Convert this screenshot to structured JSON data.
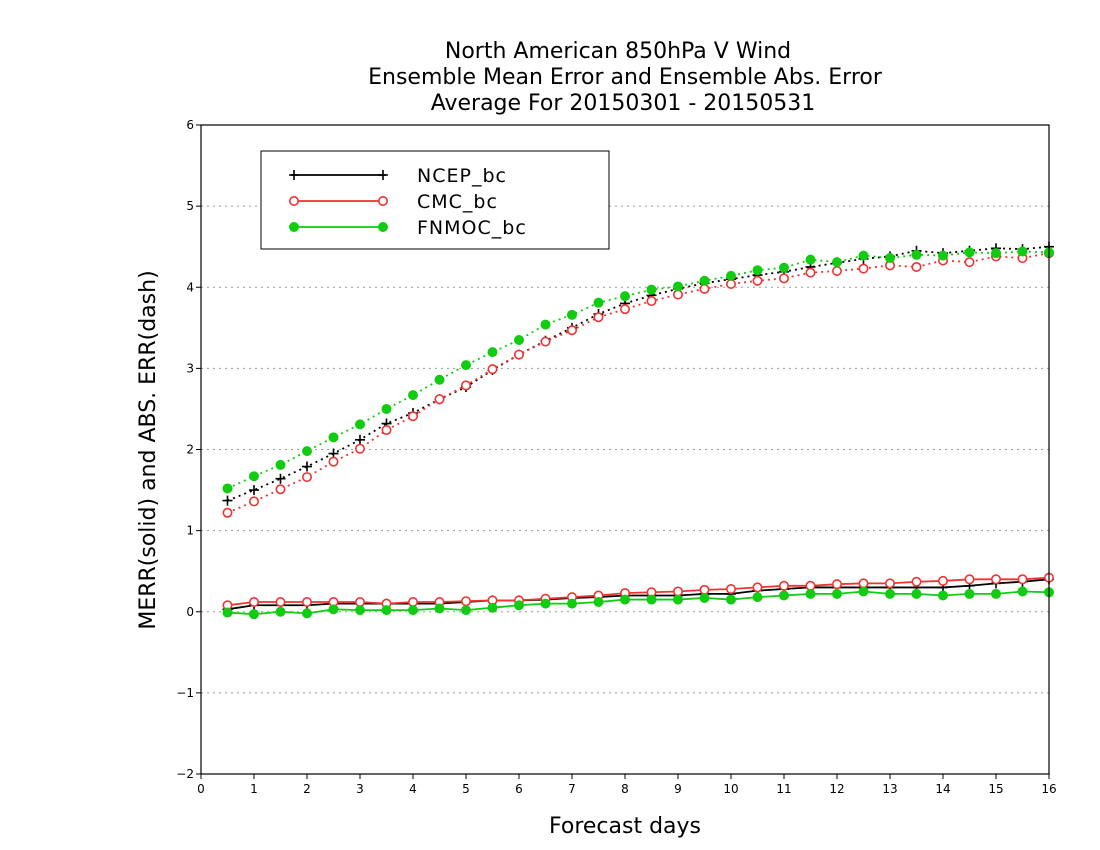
{
  "chart_data": {
    "type": "line",
    "title": [
      "North American 850hPa V Wind",
      "Ensemble Mean Error and Ensemble Abs. Error",
      "Average For 20150301 - 20150531"
    ],
    "xlabel": "Forecast days",
    "ylabel": "MERR(solid) and ABS. ERR(dash)",
    "xlim": [
      0,
      16
    ],
    "ylim": [
      -2,
      6
    ],
    "x_ticks": [
      "0",
      "1",
      "2",
      "3",
      "4",
      "5",
      "6",
      "7",
      "8",
      "9",
      "10",
      "11",
      "12",
      "13",
      "14",
      "15",
      "16"
    ],
    "y_ticks": [
      "−2",
      "−1",
      "0",
      "1",
      "2",
      "3",
      "4",
      "5",
      "6"
    ],
    "grid": "horizontal dotted",
    "legend_position": "top-left",
    "x": [
      0.5,
      1,
      1.5,
      2,
      2.5,
      3,
      3.5,
      4,
      4.5,
      5,
      5.5,
      6,
      6.5,
      7,
      7.5,
      8,
      8.5,
      9,
      9.5,
      10,
      10.5,
      11,
      11.5,
      12,
      12.5,
      13,
      13.5,
      14,
      14.5,
      15,
      15.5,
      16
    ],
    "series": [
      {
        "name": "NCEP_bc",
        "color": "#000000",
        "marker": "plus",
        "merr": [
          0.03,
          0.08,
          0.08,
          0.08,
          0.1,
          0.1,
          0.1,
          0.1,
          0.1,
          0.12,
          0.14,
          0.14,
          0.15,
          0.17,
          0.18,
          0.2,
          0.2,
          0.2,
          0.22,
          0.22,
          0.26,
          0.28,
          0.3,
          0.3,
          0.3,
          0.3,
          0.3,
          0.3,
          0.32,
          0.35,
          0.37,
          0.4
        ],
        "abs_err": [
          1.37,
          1.5,
          1.64,
          1.79,
          1.95,
          2.12,
          2.32,
          2.45,
          2.62,
          2.77,
          2.98,
          3.17,
          3.34,
          3.5,
          3.67,
          3.8,
          3.9,
          3.98,
          4.05,
          4.1,
          4.15,
          4.19,
          4.25,
          4.3,
          4.35,
          4.38,
          4.45,
          4.42,
          4.45,
          4.48,
          4.47,
          4.5
        ]
      },
      {
        "name": "CMC_bc",
        "color": "#ee3333",
        "marker": "open-circle",
        "merr": [
          0.08,
          0.12,
          0.12,
          0.12,
          0.12,
          0.12,
          0.1,
          0.12,
          0.12,
          0.13,
          0.14,
          0.14,
          0.16,
          0.18,
          0.2,
          0.23,
          0.24,
          0.25,
          0.27,
          0.28,
          0.3,
          0.32,
          0.32,
          0.34,
          0.35,
          0.35,
          0.37,
          0.38,
          0.4,
          0.4,
          0.4,
          0.42
        ],
        "abs_err": [
          1.22,
          1.36,
          1.51,
          1.66,
          1.85,
          2.01,
          2.24,
          2.41,
          2.62,
          2.79,
          2.99,
          3.17,
          3.33,
          3.47,
          3.63,
          3.73,
          3.83,
          3.91,
          3.98,
          4.04,
          4.08,
          4.11,
          4.18,
          4.2,
          4.23,
          4.27,
          4.25,
          4.33,
          4.31,
          4.38,
          4.36,
          4.42
        ]
      },
      {
        "name": "FNMOC_bc",
        "color": "#11cc11",
        "marker": "filled-circle",
        "merr": [
          -0.01,
          -0.03,
          0.0,
          -0.02,
          0.03,
          0.02,
          0.02,
          0.02,
          0.04,
          0.02,
          0.05,
          0.08,
          0.1,
          0.1,
          0.12,
          0.15,
          0.15,
          0.15,
          0.17,
          0.15,
          0.18,
          0.2,
          0.22,
          0.22,
          0.25,
          0.22,
          0.22,
          0.2,
          0.22,
          0.22,
          0.25,
          0.24
        ],
        "abs_err": [
          1.52,
          1.67,
          1.81,
          1.98,
          2.15,
          2.31,
          2.5,
          2.67,
          2.86,
          3.04,
          3.2,
          3.35,
          3.54,
          3.66,
          3.81,
          3.89,
          3.97,
          4.01,
          4.08,
          4.14,
          4.21,
          4.24,
          4.34,
          4.31,
          4.39,
          4.36,
          4.4,
          4.39,
          4.43,
          4.42,
          4.44,
          4.43
        ]
      }
    ]
  }
}
